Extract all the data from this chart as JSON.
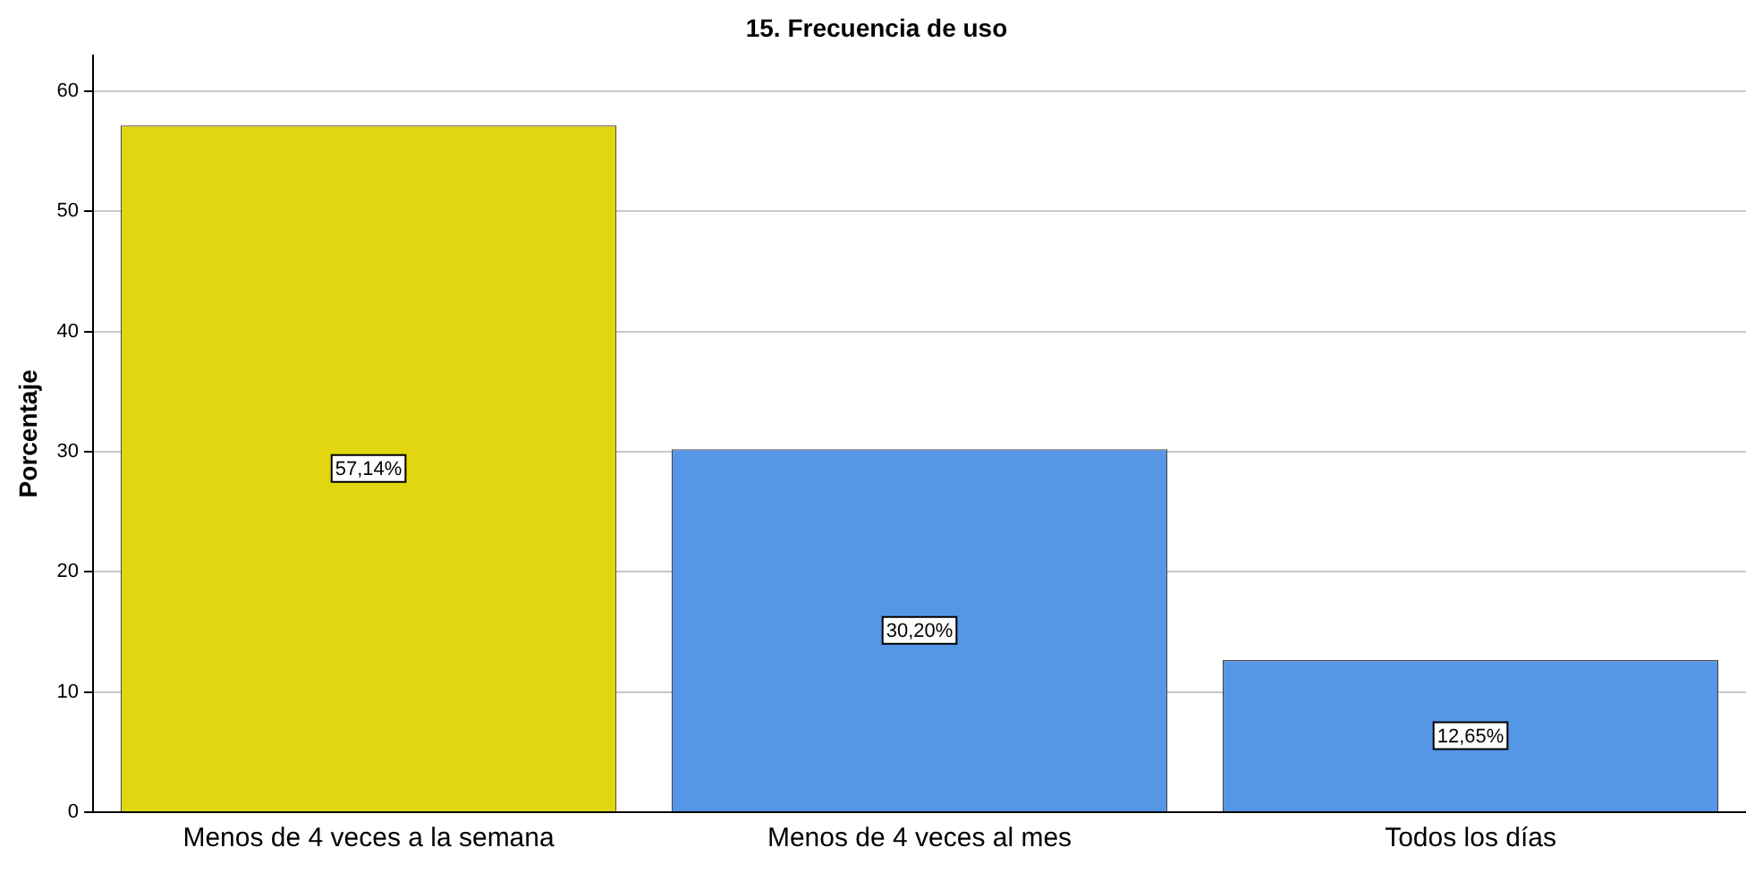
{
  "chart_data": {
    "type": "bar",
    "title": "15. Frecuencia de uso",
    "ylabel": "Porcentaje",
    "categories": [
      "Menos de 4 veces a la semana",
      "Menos de 4 veces al mes",
      "Todos los días"
    ],
    "values": [
      57.14,
      30.2,
      12.65
    ],
    "colors": [
      "#e1d60f",
      "#5596e6",
      "#5596e6"
    ],
    "value_labels": [
      "57,14%",
      "30,20%",
      "12,65%"
    ],
    "ylim": [
      0,
      63
    ],
    "yticks": [
      0,
      10,
      20,
      30,
      40,
      50,
      60
    ],
    "grid": "y"
  }
}
